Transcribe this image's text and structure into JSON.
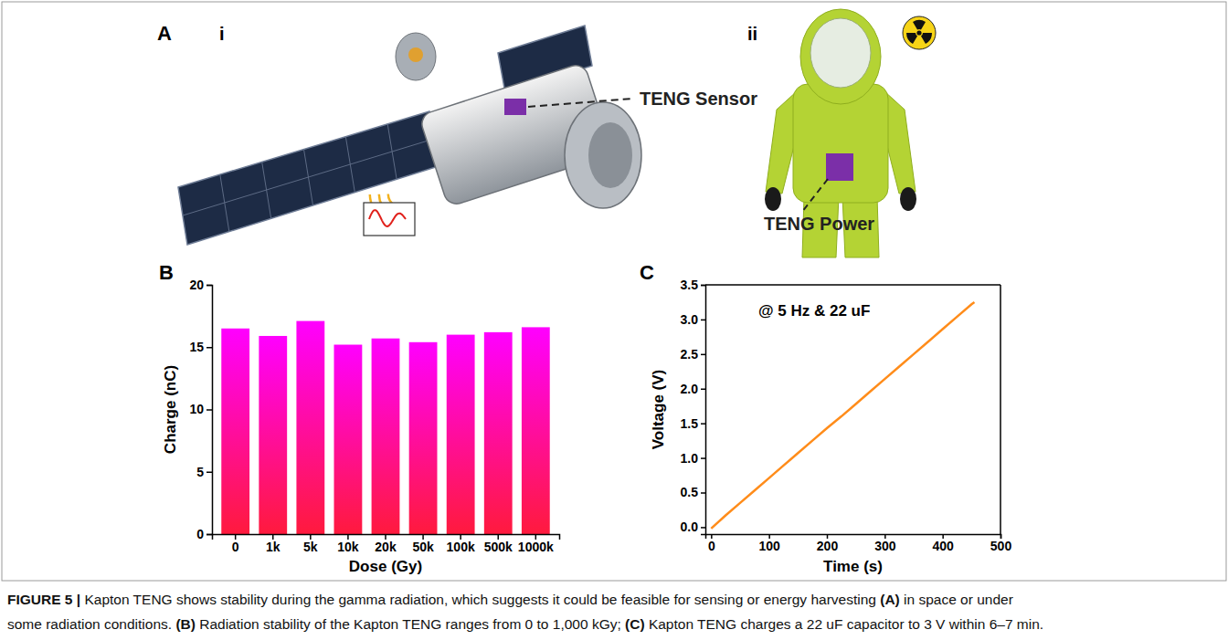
{
  "panel_a": {
    "label": "A",
    "subpanels": [
      {
        "label": "i",
        "callout": "TENG Sensor"
      },
      {
        "label": "ii",
        "callout": "TENG Power"
      }
    ]
  },
  "chart_data": [
    {
      "type": "bar",
      "annotations": [
        "B"
      ],
      "x_label": "Dose (Gy)",
      "y_label": "Charge (nC)",
      "categories": [
        "0",
        "1k",
        "5k",
        "10k",
        "20k",
        "50k",
        "100k",
        "500k",
        "1000k"
      ],
      "values": [
        16.5,
        15.9,
        17.1,
        15.2,
        15.7,
        15.4,
        16.0,
        16.2,
        16.6
      ],
      "color": "#ff00ff",
      "ylim": [
        0,
        20
      ],
      "yticks": [
        0,
        5,
        10,
        15,
        20
      ]
    },
    {
      "type": "line",
      "annotations": [
        "C",
        "@ 5 Hz & 22 uF"
      ],
      "x_label": "Time (s)",
      "y_label": "Voltage (V)",
      "x": [
        0,
        25,
        50,
        75,
        100,
        125,
        150,
        175,
        200,
        225,
        250,
        275,
        300,
        325,
        350,
        375,
        400,
        425,
        450,
        455
      ],
      "series": [
        {
          "color": "#ff8c1a",
          "values": [
            -0.02,
            0.17,
            0.35,
            0.53,
            0.71,
            0.89,
            1.07,
            1.25,
            1.43,
            1.6,
            1.78,
            1.96,
            2.14,
            2.32,
            2.5,
            2.68,
            2.86,
            3.04,
            3.22,
            3.25
          ]
        }
      ],
      "xlim": [
        -10,
        500
      ],
      "xticks": [
        0,
        100,
        200,
        300,
        400,
        500
      ],
      "ylim": [
        -0.1,
        3.5
      ],
      "yticks": [
        {
          "value": 0,
          "label": "0.0"
        },
        0.5,
        {
          "value": 1,
          "label": "1.0"
        },
        1.5,
        {
          "value": 2,
          "label": "2.0"
        },
        2.5,
        {
          "value": 3,
          "label": "3.0"
        },
        3.5
      ]
    }
  ],
  "caption": {
    "lines": [
      [
        {
          "text": "FIGURE 5 |",
          "bold": true
        },
        {
          "text": " Kapton TENG shows stability during the gamma radiation, which suggests it could be feasible for sensing or energy harvesting "
        },
        {
          "text": "(A)",
          "bold": true
        },
        {
          "text": " in space or under"
        }
      ],
      [
        {
          "text": "some radiation conditions. "
        },
        {
          "text": "(B)",
          "bold": true
        },
        {
          "text": " Radiation stability of the Kapton TENG ranges from 0 to 1,000 kGy; "
        },
        {
          "text": "(C)",
          "bold": true
        },
        {
          "text": " Kapton TENG charges a 22 uF capacitor to 3 V within 6–7 min."
        }
      ]
    ]
  }
}
